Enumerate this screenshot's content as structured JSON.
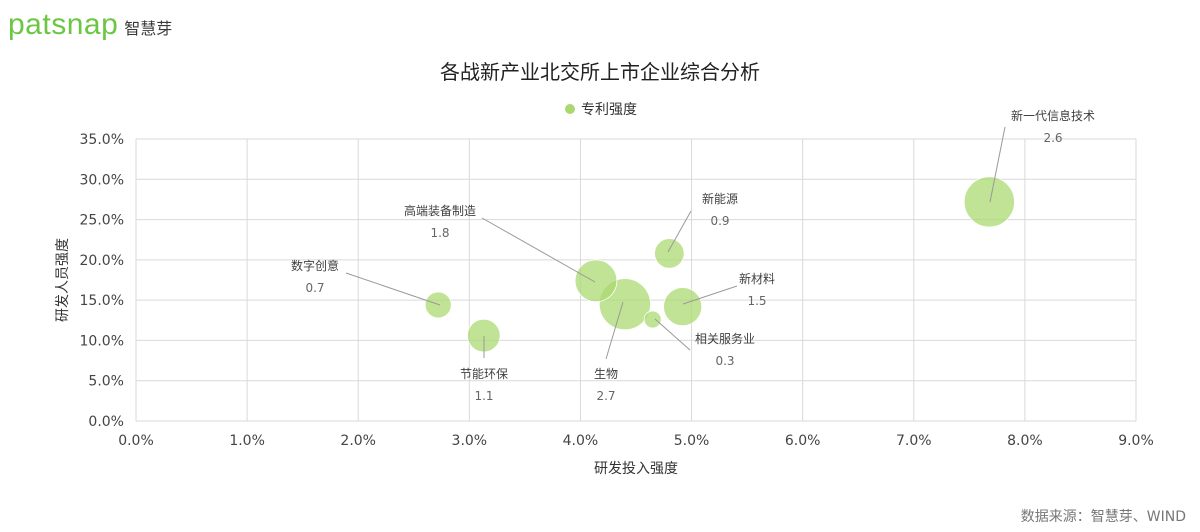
{
  "brand": {
    "logo_text": "patsnap",
    "cn_name": "智慧芽"
  },
  "source_note": "数据来源：智慧芽、WIND",
  "chart_data": {
    "type": "bubble",
    "title": "各战新产业北交所上市企业综合分析",
    "xlabel": "研发投入强度",
    "ylabel": "研发人员强度",
    "legend": {
      "label": "专利强度",
      "position": "top-center"
    },
    "xlim": [
      0,
      0.09
    ],
    "ylim": [
      0,
      0.35
    ],
    "x_ticks": [
      "0.0%",
      "1.0%",
      "2.0%",
      "3.0%",
      "4.0%",
      "5.0%",
      "6.0%",
      "7.0%",
      "8.0%",
      "9.0%"
    ],
    "y_ticks": [
      "0.0%",
      "5.0%",
      "10.0%",
      "15.0%",
      "20.0%",
      "25.0%",
      "30.0%",
      "35.0%"
    ],
    "grid": true,
    "bubble_color": "#a9d86e",
    "points": [
      {
        "name": "新一代信息技术",
        "x": 0.0768,
        "y": 0.272,
        "size": 2.6,
        "size_label": "2.6"
      },
      {
        "name": "高端装备制造",
        "x": 0.0414,
        "y": 0.174,
        "size": 1.8,
        "size_label": "1.8"
      },
      {
        "name": "新能源",
        "x": 0.048,
        "y": 0.208,
        "size": 0.9,
        "size_label": "0.9"
      },
      {
        "name": "数字创意",
        "x": 0.0272,
        "y": 0.144,
        "size": 0.7,
        "size_label": "0.7"
      },
      {
        "name": "新材料",
        "x": 0.0492,
        "y": 0.142,
        "size": 1.5,
        "size_label": "1.5"
      },
      {
        "name": "节能环保",
        "x": 0.0313,
        "y": 0.106,
        "size": 1.1,
        "size_label": "1.1"
      },
      {
        "name": "生物",
        "x": 0.044,
        "y": 0.145,
        "size": 2.7,
        "size_label": "2.7"
      },
      {
        "name": "相关服务业",
        "x": 0.0465,
        "y": 0.126,
        "size": 0.3,
        "size_label": "0.3"
      }
    ]
  }
}
